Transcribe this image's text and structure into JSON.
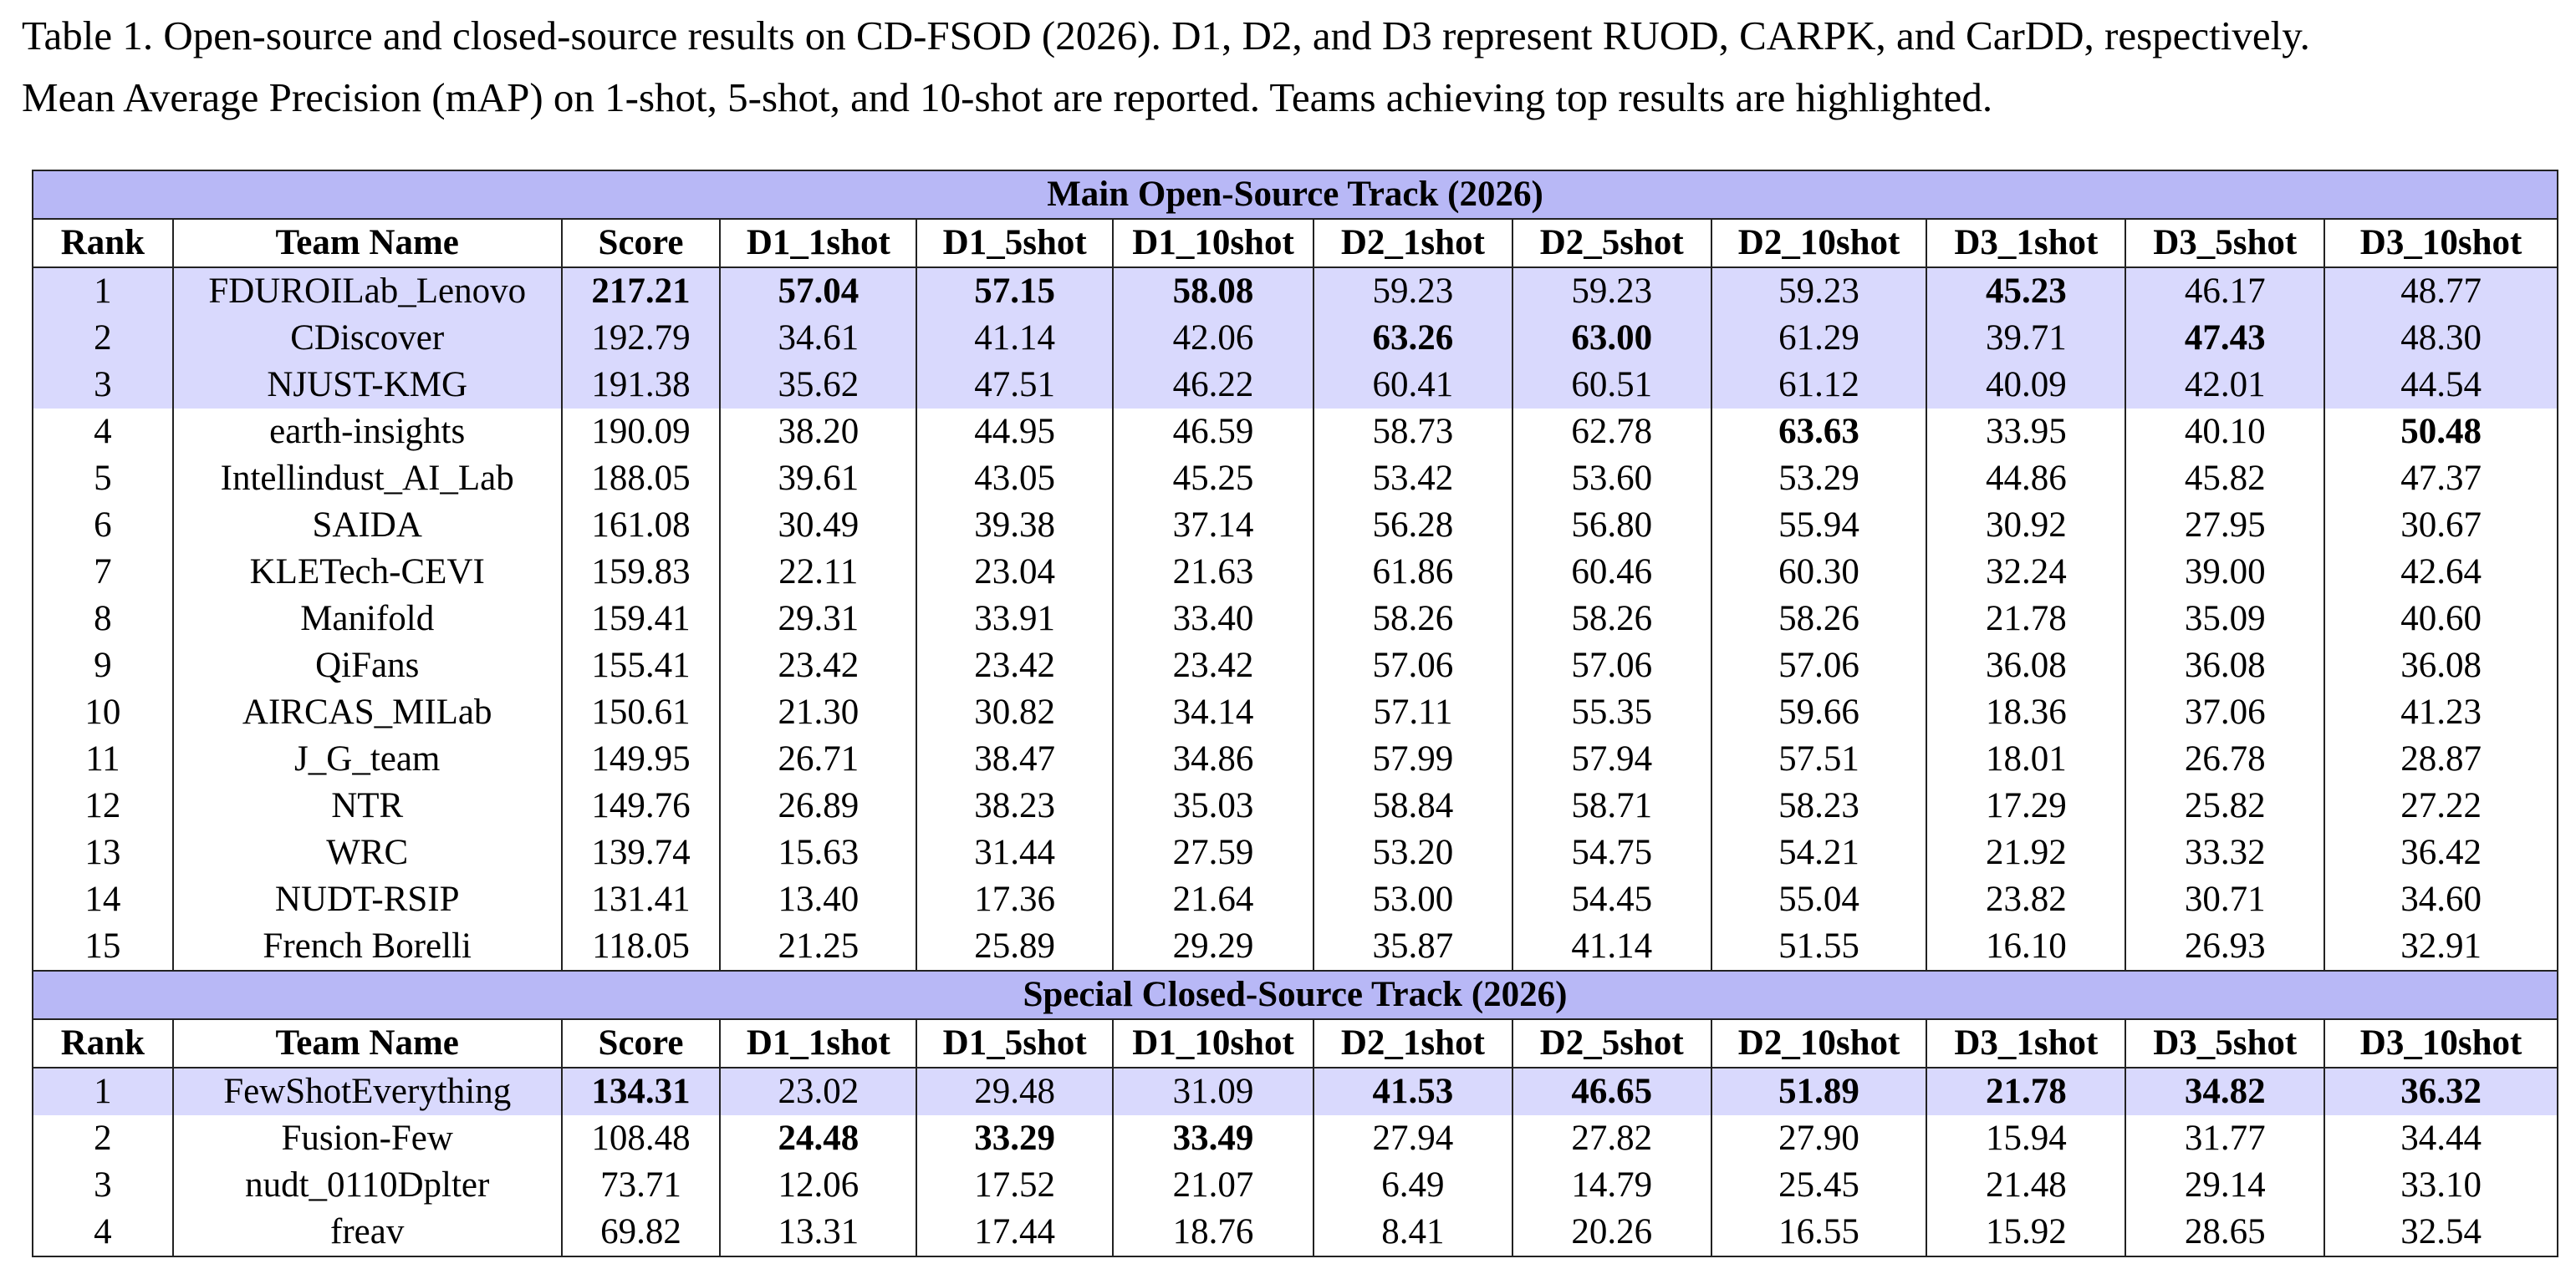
{
  "caption": {
    "line1": "Table 1. Open-source and closed-source results on CD-FSOD (2026). D1, D2, and D3 represent RUOD, CARPK, and CarDD, respectively.",
    "line2": "Mean Average Precision (mAP) on 1-shot, 5-shot, and 10-shot are reported. Teams achieving top results are highlighted."
  },
  "colors": {
    "track_header": "#b8b8f6",
    "highlight_row": "#d9d9fd"
  },
  "columns": [
    "Rank",
    "Team Name",
    "Score",
    "D1_1shot",
    "D1_5shot",
    "D1_10shot",
    "D2_1shot",
    "D2_5shot",
    "D2_10shot",
    "D3_1shot",
    "D3_5shot",
    "D3_10shot"
  ],
  "tracks": [
    {
      "title": "Main Open-Source Track (2026)",
      "rows": [
        {
          "highlight": true,
          "bold": [
            2,
            3,
            4,
            5,
            9
          ],
          "cells": [
            "1",
            "FDUROILab_Lenovo",
            "217.21",
            "57.04",
            "57.15",
            "58.08",
            "59.23",
            "59.23",
            "59.23",
            "45.23",
            "46.17",
            "48.77"
          ]
        },
        {
          "highlight": true,
          "bold": [
            6,
            7,
            10
          ],
          "cells": [
            "2",
            "CDiscover",
            "192.79",
            "34.61",
            "41.14",
            "42.06",
            "63.26",
            "63.00",
            "61.29",
            "39.71",
            "47.43",
            "48.30"
          ]
        },
        {
          "highlight": true,
          "bold": [],
          "cells": [
            "3",
            "NJUST-KMG",
            "191.38",
            "35.62",
            "47.51",
            "46.22",
            "60.41",
            "60.51",
            "61.12",
            "40.09",
            "42.01",
            "44.54"
          ]
        },
        {
          "highlight": false,
          "bold": [
            8,
            11
          ],
          "cells": [
            "4",
            "earth-insights",
            "190.09",
            "38.20",
            "44.95",
            "46.59",
            "58.73",
            "62.78",
            "63.63",
            "33.95",
            "40.10",
            "50.48"
          ]
        },
        {
          "highlight": false,
          "bold": [],
          "cells": [
            "5",
            "Intellindust_AI_Lab",
            "188.05",
            "39.61",
            "43.05",
            "45.25",
            "53.42",
            "53.60",
            "53.29",
            "44.86",
            "45.82",
            "47.37"
          ]
        },
        {
          "highlight": false,
          "bold": [],
          "cells": [
            "6",
            "SAIDA",
            "161.08",
            "30.49",
            "39.38",
            "37.14",
            "56.28",
            "56.80",
            "55.94",
            "30.92",
            "27.95",
            "30.67"
          ]
        },
        {
          "highlight": false,
          "bold": [],
          "cells": [
            "7",
            "KLETech-CEVI",
            "159.83",
            "22.11",
            "23.04",
            "21.63",
            "61.86",
            "60.46",
            "60.30",
            "32.24",
            "39.00",
            "42.64"
          ]
        },
        {
          "highlight": false,
          "bold": [],
          "cells": [
            "8",
            "Manifold",
            "159.41",
            "29.31",
            "33.91",
            "33.40",
            "58.26",
            "58.26",
            "58.26",
            "21.78",
            "35.09",
            "40.60"
          ]
        },
        {
          "highlight": false,
          "bold": [],
          "cells": [
            "9",
            "QiFans",
            "155.41",
            "23.42",
            "23.42",
            "23.42",
            "57.06",
            "57.06",
            "57.06",
            "36.08",
            "36.08",
            "36.08"
          ]
        },
        {
          "highlight": false,
          "bold": [],
          "cells": [
            "10",
            "AIRCAS_MILab",
            "150.61",
            "21.30",
            "30.82",
            "34.14",
            "57.11",
            "55.35",
            "59.66",
            "18.36",
            "37.06",
            "41.23"
          ]
        },
        {
          "highlight": false,
          "bold": [],
          "cells": [
            "11",
            "J_G_team",
            "149.95",
            "26.71",
            "38.47",
            "34.86",
            "57.99",
            "57.94",
            "57.51",
            "18.01",
            "26.78",
            "28.87"
          ]
        },
        {
          "highlight": false,
          "bold": [],
          "cells": [
            "12",
            "NTR",
            "149.76",
            "26.89",
            "38.23",
            "35.03",
            "58.84",
            "58.71",
            "58.23",
            "17.29",
            "25.82",
            "27.22"
          ]
        },
        {
          "highlight": false,
          "bold": [],
          "cells": [
            "13",
            "WRC",
            "139.74",
            "15.63",
            "31.44",
            "27.59",
            "53.20",
            "54.75",
            "54.21",
            "21.92",
            "33.32",
            "36.42"
          ]
        },
        {
          "highlight": false,
          "bold": [],
          "cells": [
            "14",
            "NUDT-RSIP",
            "131.41",
            "13.40",
            "17.36",
            "21.64",
            "53.00",
            "54.45",
            "55.04",
            "23.82",
            "30.71",
            "34.60"
          ]
        },
        {
          "highlight": false,
          "bold": [],
          "cells": [
            "15",
            "French Borelli",
            "118.05",
            "21.25",
            "25.89",
            "29.29",
            "35.87",
            "41.14",
            "51.55",
            "16.10",
            "26.93",
            "32.91"
          ]
        }
      ]
    },
    {
      "title": "Special Closed-Source Track (2026)",
      "rows": [
        {
          "highlight": true,
          "bold": [
            2,
            6,
            7,
            8,
            9,
            10,
            11
          ],
          "cells": [
            "1",
            "FewShotEverything",
            "134.31",
            "23.02",
            "29.48",
            "31.09",
            "41.53",
            "46.65",
            "51.89",
            "21.78",
            "34.82",
            "36.32"
          ]
        },
        {
          "highlight": false,
          "bold": [
            3,
            4,
            5
          ],
          "cells": [
            "2",
            "Fusion-Few",
            "108.48",
            "24.48",
            "33.29",
            "33.49",
            "27.94",
            "27.82",
            "27.90",
            "15.94",
            "31.77",
            "34.44"
          ]
        },
        {
          "highlight": false,
          "bold": [],
          "cells": [
            "3",
            "nudt_0110Dplter",
            "73.71",
            "12.06",
            "17.52",
            "21.07",
            "6.49",
            "14.79",
            "25.45",
            "21.48",
            "29.14",
            "33.10"
          ]
        },
        {
          "highlight": false,
          "bold": [],
          "cells": [
            "4",
            "freav",
            "69.82",
            "13.31",
            "17.44",
            "18.76",
            "8.41",
            "20.26",
            "16.55",
            "15.92",
            "28.65",
            "32.54"
          ]
        }
      ]
    }
  ]
}
